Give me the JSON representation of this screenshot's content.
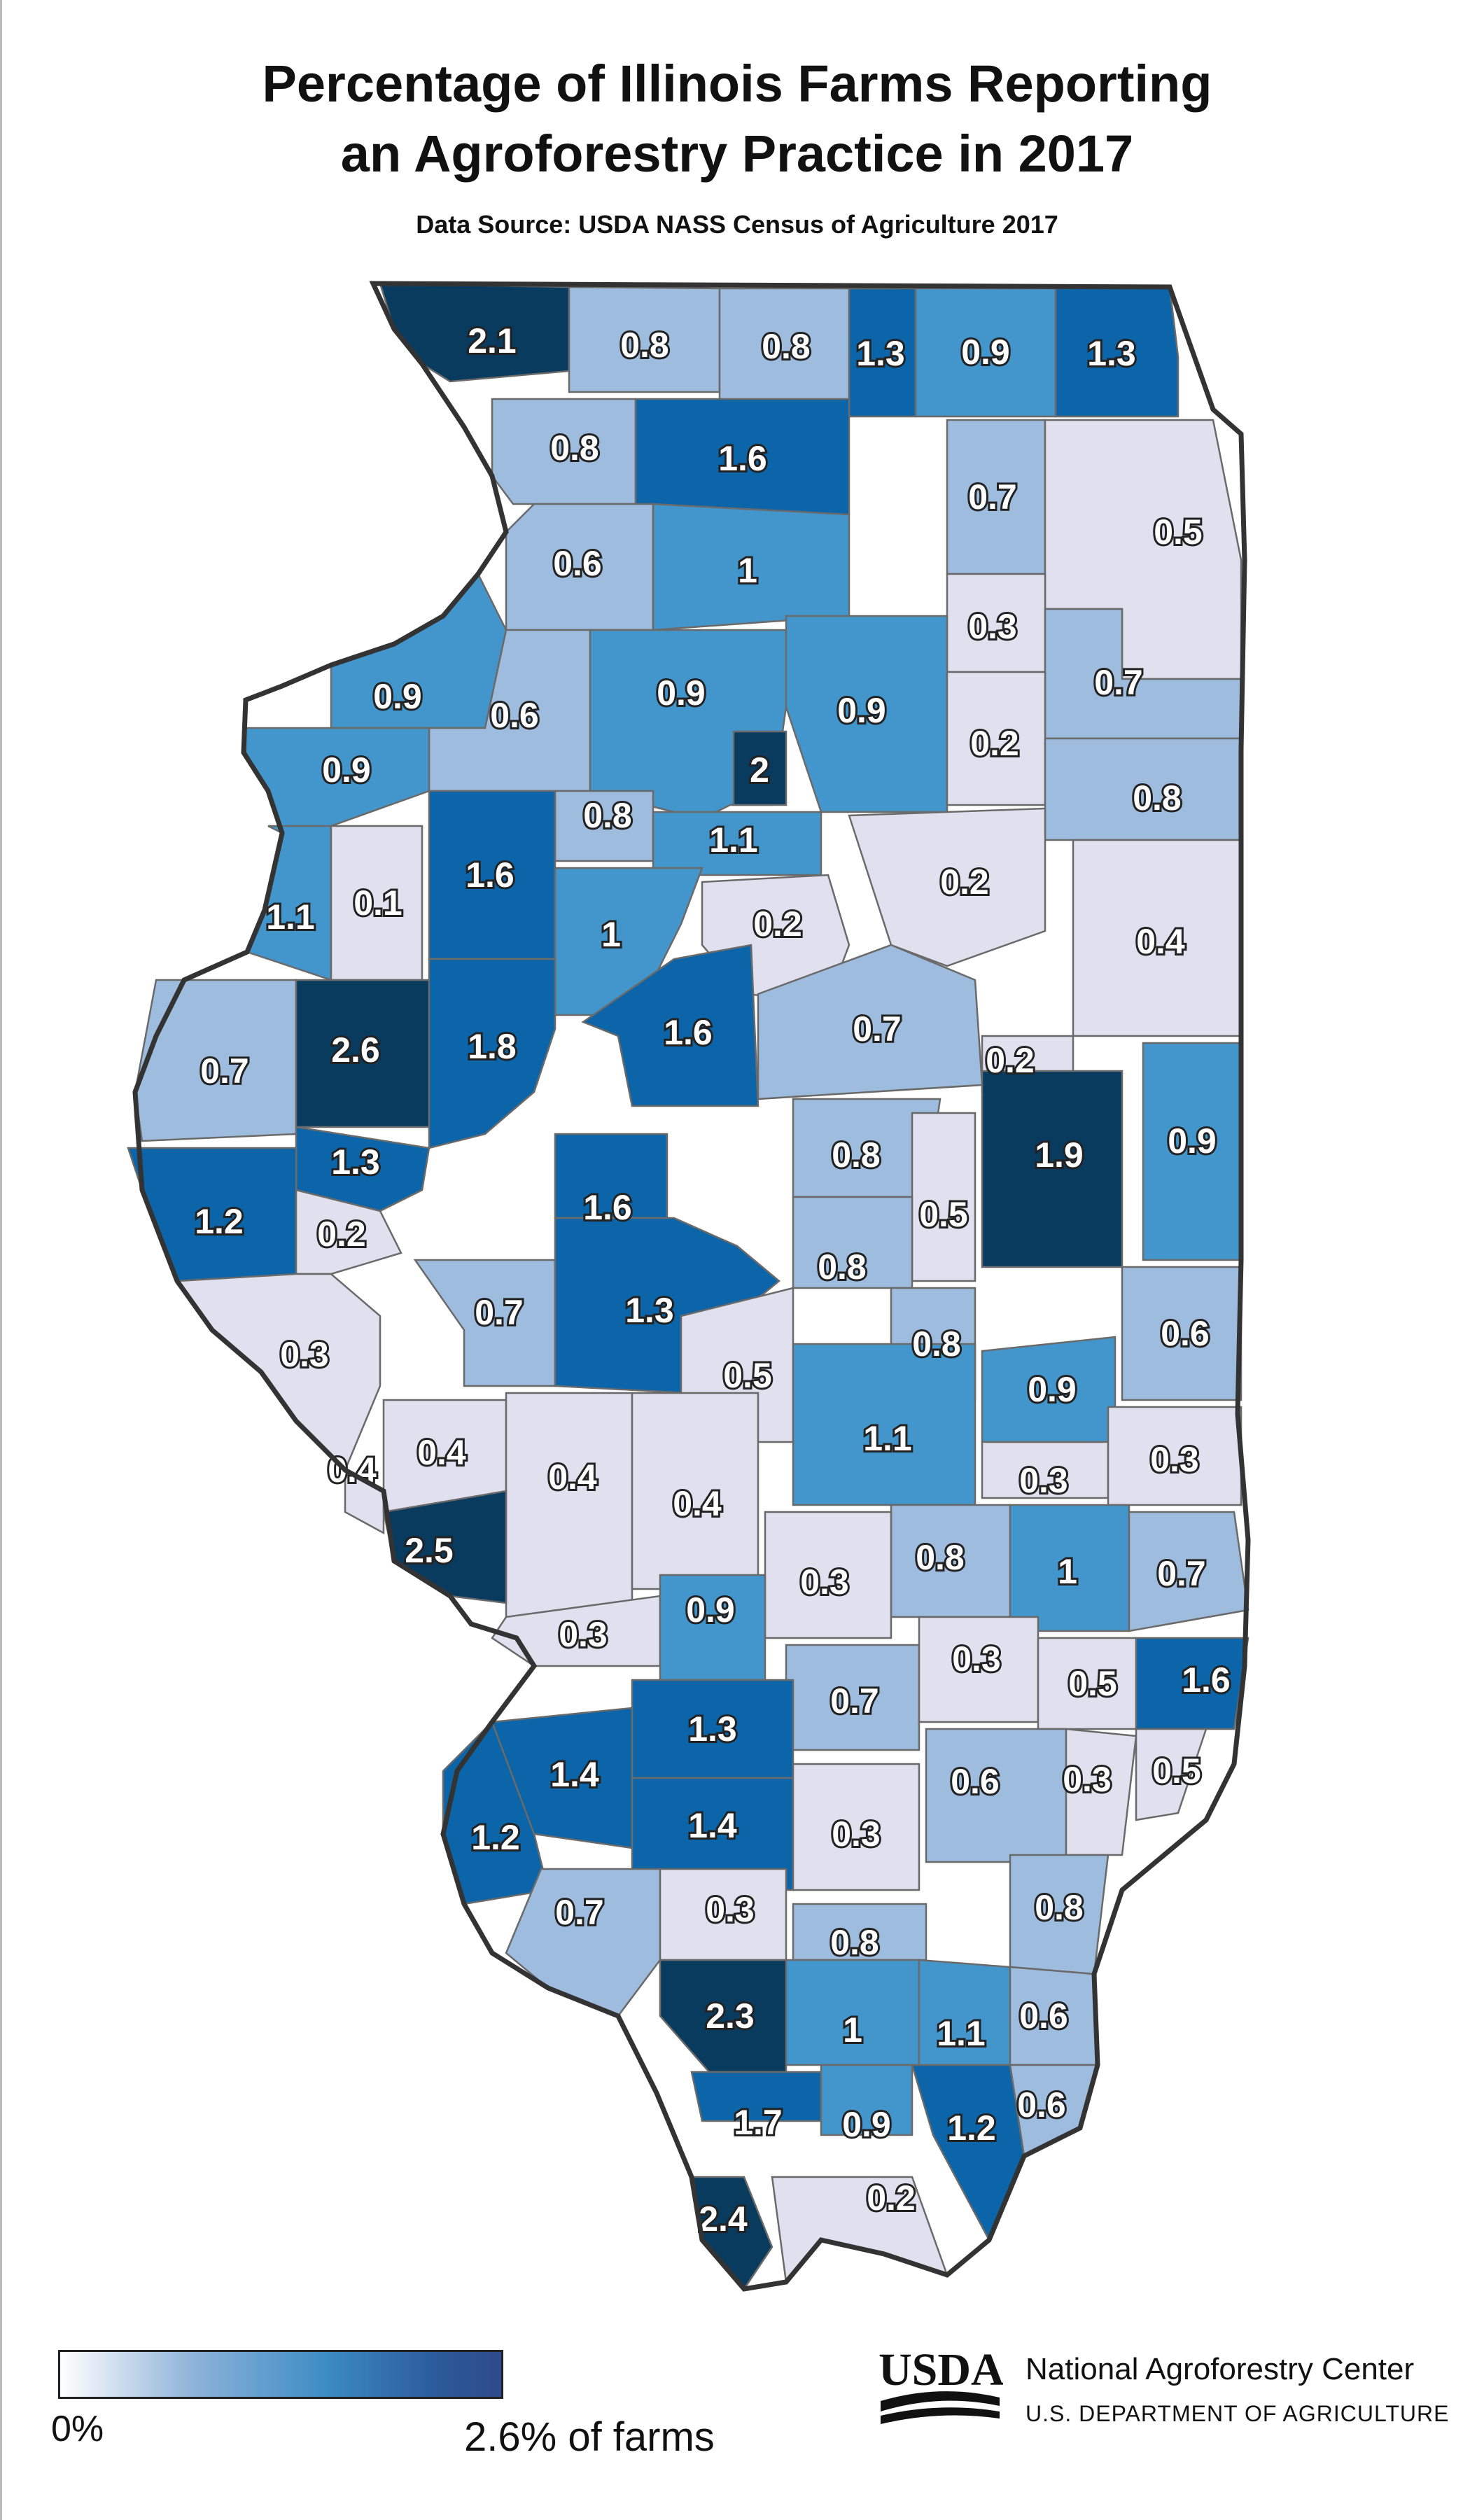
{
  "title_line1": "Percentage of Illinois Farms Reporting",
  "title_line2": "an Agroforestry Practice in 2017",
  "source": "Data Source: USDA NASS Census of Agriculture 2017",
  "legend": {
    "min_label": "0%",
    "max_label": "2.6% of farms",
    "min_value": 0,
    "max_value": 2.6
  },
  "colors": {
    "c0": "#e0e0ee",
    "c1": "#9ebcde",
    "c2": "#4396cb",
    "c3": "#0b65a8",
    "c4": "#093b5f",
    "nodata": "#ffffff",
    "border": "#333333"
  },
  "logo": {
    "name": "usda-logo",
    "text": "USDA"
  },
  "org": {
    "name": "National Agroforestry Center",
    "dept": "U.S. DEPARTMENT OF AGRICULTURE"
  },
  "counties": [
    {
      "label": "2.1",
      "value": 2.1,
      "shade": 4
    },
    {
      "label": "0.8",
      "value": 0.8,
      "shade": 1
    },
    {
      "label": "0.8",
      "value": 0.8,
      "shade": 1
    },
    {
      "label": "1.3",
      "value": 1.3,
      "shade": 3
    },
    {
      "label": "0.9",
      "value": 0.9,
      "shade": 2
    },
    {
      "label": "1.3",
      "value": 1.3,
      "shade": 3
    },
    {
      "label": "0.8",
      "value": 0.8,
      "shade": 1
    },
    {
      "label": "1.6",
      "value": 1.6,
      "shade": 3
    },
    {
      "label": "0.7",
      "value": 0.7,
      "shade": 1
    },
    {
      "label": "0.5",
      "value": 0.5,
      "shade": 0
    },
    {
      "label": "0.6",
      "value": 0.6,
      "shade": 1
    },
    {
      "label": "1",
      "value": 1.0,
      "shade": 2
    },
    {
      "label": "0.3",
      "value": 0.3,
      "shade": 0
    },
    {
      "label": "0.9",
      "value": 0.9,
      "shade": 2
    },
    {
      "label": "0.6",
      "value": 0.6,
      "shade": 1
    },
    {
      "label": "0.9",
      "value": 0.9,
      "shade": 2
    },
    {
      "label": "0.9",
      "value": 0.9,
      "shade": 2
    },
    {
      "label": "0.7",
      "value": 0.7,
      "shade": 1
    },
    {
      "label": "0.2",
      "value": 0.2,
      "shade": 0
    },
    {
      "label": "0.9",
      "value": 0.9,
      "shade": 2
    },
    {
      "label": "2",
      "value": 2.0,
      "shade": 4
    },
    {
      "label": "0.8",
      "value": 0.8,
      "shade": 1
    },
    {
      "label": "1.6",
      "value": 1.6,
      "shade": 3
    },
    {
      "label": "0.8",
      "value": 0.8,
      "shade": 1
    },
    {
      "label": "1.1",
      "value": 1.1,
      "shade": 2
    },
    {
      "label": "1.1",
      "value": 1.1,
      "shade": 2
    },
    {
      "label": "0.1",
      "value": 0.1,
      "shade": 0
    },
    {
      "label": "1",
      "value": 1.0,
      "shade": 2
    },
    {
      "label": "0.2",
      "value": 0.2,
      "shade": 0
    },
    {
      "label": "0.2",
      "value": 0.2,
      "shade": 0
    },
    {
      "label": "0.4",
      "value": 0.4,
      "shade": 0
    },
    {
      "label": "0.7",
      "value": 0.7,
      "shade": 1
    },
    {
      "label": "2.6",
      "value": 2.6,
      "shade": 4
    },
    {
      "label": "1.8",
      "value": 1.8,
      "shade": 3
    },
    {
      "label": "1.6",
      "value": 1.6,
      "shade": 3
    },
    {
      "label": "0.7",
      "value": 0.7,
      "shade": 1
    },
    {
      "label": "0.2",
      "value": 0.2,
      "shade": 0
    },
    {
      "label": "1.3",
      "value": 1.3,
      "shade": 3
    },
    {
      "label": "0.8",
      "value": 0.8,
      "shade": 1
    },
    {
      "label": "1.9",
      "value": 1.9,
      "shade": 4
    },
    {
      "label": "0.9",
      "value": 0.9,
      "shade": 2
    },
    {
      "label": "1.2",
      "value": 1.2,
      "shade": 3
    },
    {
      "label": "0.2",
      "value": 0.2,
      "shade": 0
    },
    {
      "label": "1.6",
      "value": 1.6,
      "shade": 3
    },
    {
      "label": "0.5",
      "value": 0.5,
      "shade": 0
    },
    {
      "label": "0.8",
      "value": 0.8,
      "shade": 1
    },
    {
      "label": "0.3",
      "value": 0.3,
      "shade": 0
    },
    {
      "label": "0.7",
      "value": 0.7,
      "shade": 1
    },
    {
      "label": "1.3",
      "value": 1.3,
      "shade": 3
    },
    {
      "label": "0.8",
      "value": 0.8,
      "shade": 1
    },
    {
      "label": "0.6",
      "value": 0.6,
      "shade": 1
    },
    {
      "label": "0.5",
      "value": 0.5,
      "shade": 0
    },
    {
      "label": "0.9",
      "value": 0.9,
      "shade": 2
    },
    {
      "label": "1.1",
      "value": 1.1,
      "shade": 2
    },
    {
      "label": "0.4",
      "value": 0.4,
      "shade": 0
    },
    {
      "label": "0.4",
      "value": 0.4,
      "shade": 0
    },
    {
      "label": "0.4",
      "value": 0.4,
      "shade": 0
    },
    {
      "label": "0.4",
      "value": 0.4,
      "shade": 0
    },
    {
      "label": "0.3",
      "value": 0.3,
      "shade": 0
    },
    {
      "label": "0.3",
      "value": 0.3,
      "shade": 0
    },
    {
      "label": "2.5",
      "value": 2.5,
      "shade": 4
    },
    {
      "label": "0.3",
      "value": 0.3,
      "shade": 0
    },
    {
      "label": "0.8",
      "value": 0.8,
      "shade": 1
    },
    {
      "label": "1",
      "value": 1.0,
      "shade": 2
    },
    {
      "label": "0.7",
      "value": 0.7,
      "shade": 1
    },
    {
      "label": "0.3",
      "value": 0.3,
      "shade": 0
    },
    {
      "label": "0.9",
      "value": 0.9,
      "shade": 2
    },
    {
      "label": "0.7",
      "value": 0.7,
      "shade": 1
    },
    {
      "label": "0.3",
      "value": 0.3,
      "shade": 0
    },
    {
      "label": "0.5",
      "value": 0.5,
      "shade": 0
    },
    {
      "label": "1.6",
      "value": 1.6,
      "shade": 3
    },
    {
      "label": "1.4",
      "value": 1.4,
      "shade": 3
    },
    {
      "label": "1.3",
      "value": 1.3,
      "shade": 3
    },
    {
      "label": "0.6",
      "value": 0.6,
      "shade": 1
    },
    {
      "label": "0.3",
      "value": 0.3,
      "shade": 0
    },
    {
      "label": "0.5",
      "value": 0.5,
      "shade": 0
    },
    {
      "label": "1.2",
      "value": 1.2,
      "shade": 3
    },
    {
      "label": "1.4",
      "value": 1.4,
      "shade": 3
    },
    {
      "label": "0.3",
      "value": 0.3,
      "shade": 0
    },
    {
      "label": "0.7",
      "value": 0.7,
      "shade": 1
    },
    {
      "label": "0.3",
      "value": 0.3,
      "shade": 0
    },
    {
      "label": "0.8",
      "value": 0.8,
      "shade": 1
    },
    {
      "label": "0.8",
      "value": 0.8,
      "shade": 1
    },
    {
      "label": "2.3",
      "value": 2.3,
      "shade": 4
    },
    {
      "label": "1",
      "value": 1.0,
      "shade": 2
    },
    {
      "label": "1.1",
      "value": 1.1,
      "shade": 2
    },
    {
      "label": "0.6",
      "value": 0.6,
      "shade": 1
    },
    {
      "label": "1.7",
      "value": 1.7,
      "shade": 3
    },
    {
      "label": "0.9",
      "value": 0.9,
      "shade": 2
    },
    {
      "label": "1.2",
      "value": 1.2,
      "shade": 3
    },
    {
      "label": "0.6",
      "value": 0.6,
      "shade": 1
    },
    {
      "label": "2.4",
      "value": 2.4,
      "shade": 4
    },
    {
      "label": "0.2",
      "value": 0.2,
      "shade": 0
    }
  ]
}
